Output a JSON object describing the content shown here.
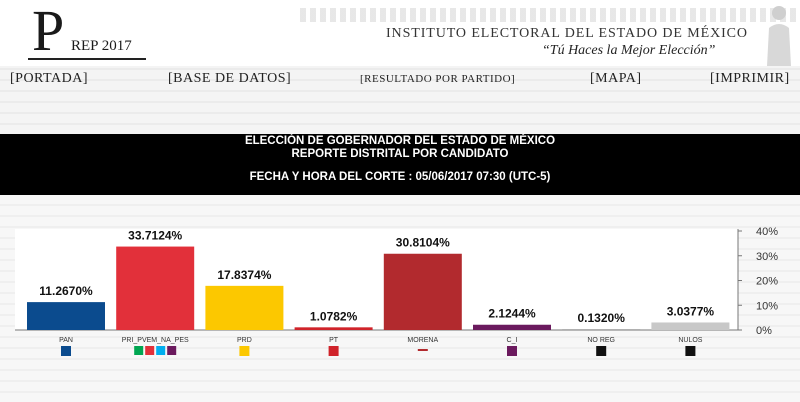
{
  "header": {
    "logo_letter": "P",
    "logo_text": "REP 2017",
    "institute": "INSTITUTO ELECTORAL DEL ESTADO DE MÉXICO",
    "motto": "“Tú Haces la Mejor Elección”"
  },
  "nav": {
    "portada": "[PORTADA]",
    "base_datos": "[BASE DE DATOS]",
    "resultado": "[RESULTADO POR PARTIDO]",
    "mapa": "[MAPA]",
    "imprimir": "[IMPRIMIR]"
  },
  "banner": {
    "line1": "ELECCIÓN DE GOBERNADOR DEL ESTADO DE MÉXICO",
    "line2": "REPORTE DISTRITAL POR CANDIDATO",
    "line3": "FECHA Y HORA DEL CORTE : 05/06/2017 07:30 (UTC-5)"
  },
  "colors": {
    "PAN": "#0b4b8e",
    "PRI_PVEM_NA_PES": "#e2303a",
    "PRD": "#fcc800",
    "PT": "#d0232a",
    "MORENA": "#b22a2e",
    "C_I": "#6b1a5e",
    "NO REG": "#9c9c9c",
    "NULOS": "#c8c8c8"
  },
  "chart_data": {
    "type": "bar",
    "title": "",
    "xlabel": "",
    "ylabel": "",
    "categories": [
      "PAN",
      "PRI_PVEM_NA_PES",
      "PRD",
      "PT",
      "MORENA",
      "C_I",
      "NO REG",
      "NULOS"
    ],
    "values": [
      11.267,
      33.7124,
      17.8374,
      1.0782,
      30.8104,
      2.1244,
      0.132,
      3.0377
    ],
    "value_labels": [
      "11.2670%",
      "33.7124%",
      "17.8374%",
      "1.0782%",
      "30.8104%",
      "2.1244%",
      "0.1320%",
      "3.0377%"
    ],
    "ylim": [
      0,
      40
    ],
    "yticks": [
      0,
      10,
      20,
      30,
      40
    ],
    "ytick_labels": [
      "0%",
      "10%",
      "20%",
      "30%",
      "40%"
    ],
    "y_axis_side": "right",
    "grid": false
  }
}
